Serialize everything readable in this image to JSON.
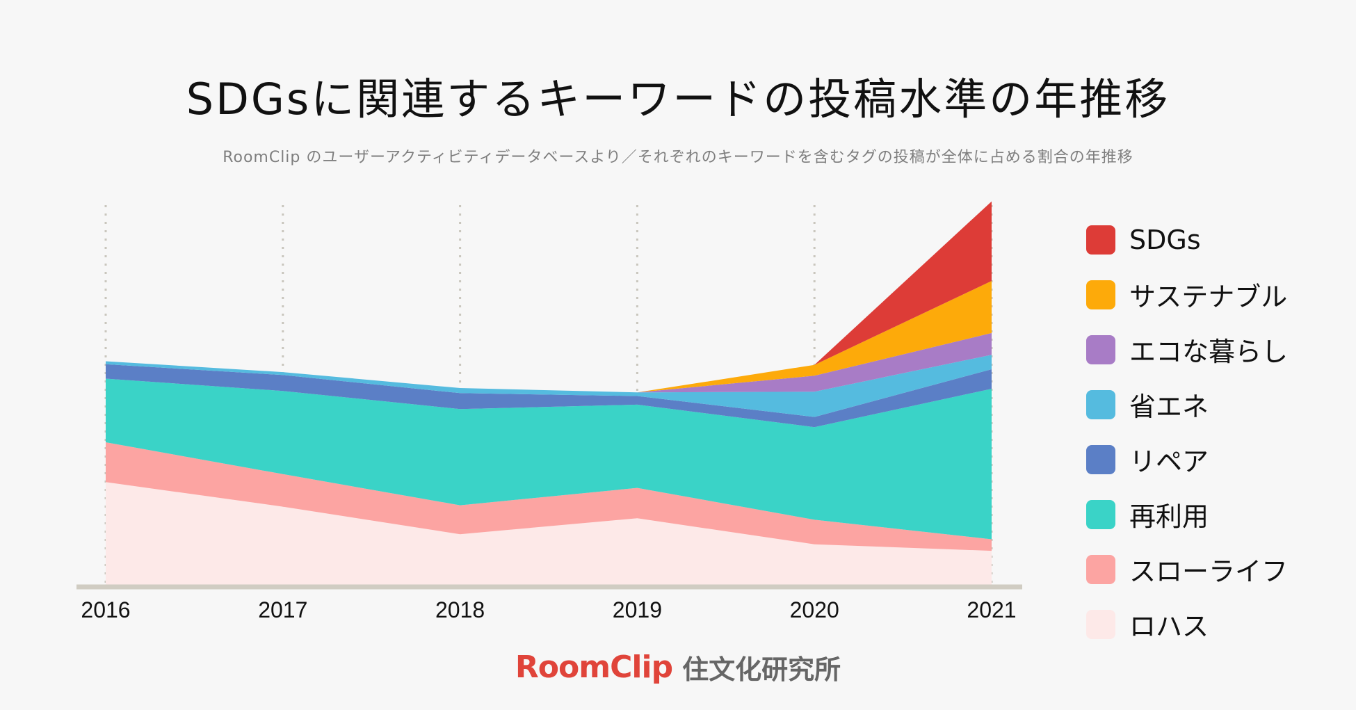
{
  "header": {
    "title": "SDGsに関連するキーワードの投稿水準の年推移",
    "subtitle": "RoomClip のユーザーアクティビティデータベースより／それぞれのキーワードを含むタグの投稿が全体に占める割合の年推移"
  },
  "footer": {
    "brand": "RoomClip",
    "institute": "住文化研究所"
  },
  "chart_data": {
    "type": "area",
    "stacked": true,
    "title": "SDGsに関連するキーワードの投稿水準の年推移",
    "x": [
      "2016",
      "2017",
      "2018",
      "2019",
      "2020",
      "2021"
    ],
    "xlabel": "",
    "ylabel": "",
    "ylim": [
      0,
      520
    ],
    "grid": "vertical-dotted",
    "legend_position": "right",
    "series": [
      {
        "name": "ロハス",
        "color": "#fde9e8",
        "values": [
          142,
          108,
          70,
          92,
          56,
          47
        ]
      },
      {
        "name": "スローライフ",
        "color": "#fca4a2",
        "values": [
          55,
          45,
          40,
          42,
          34,
          16
        ]
      },
      {
        "name": "再利用",
        "color": "#3ad3c7",
        "values": [
          88,
          115,
          133,
          115,
          128,
          208
        ]
      },
      {
        "name": "リペア",
        "color": "#5b7fc6",
        "values": [
          20,
          22,
          22,
          12,
          14,
          27
        ]
      },
      {
        "name": "省エネ",
        "color": "#55bbdf",
        "values": [
          4,
          4,
          7,
          5,
          35,
          20
        ]
      },
      {
        "name": "エコな暮らし",
        "color": "#a87cc6",
        "values": [
          0,
          0,
          0,
          0,
          22,
          30
        ]
      },
      {
        "name": "サステナブル",
        "color": "#fdaa0a",
        "values": [
          0,
          0,
          0,
          0,
          15,
          72
        ]
      },
      {
        "name": "SDGs",
        "color": "#dd3c37",
        "values": [
          0,
          0,
          0,
          0,
          0,
          110
        ]
      }
    ]
  }
}
